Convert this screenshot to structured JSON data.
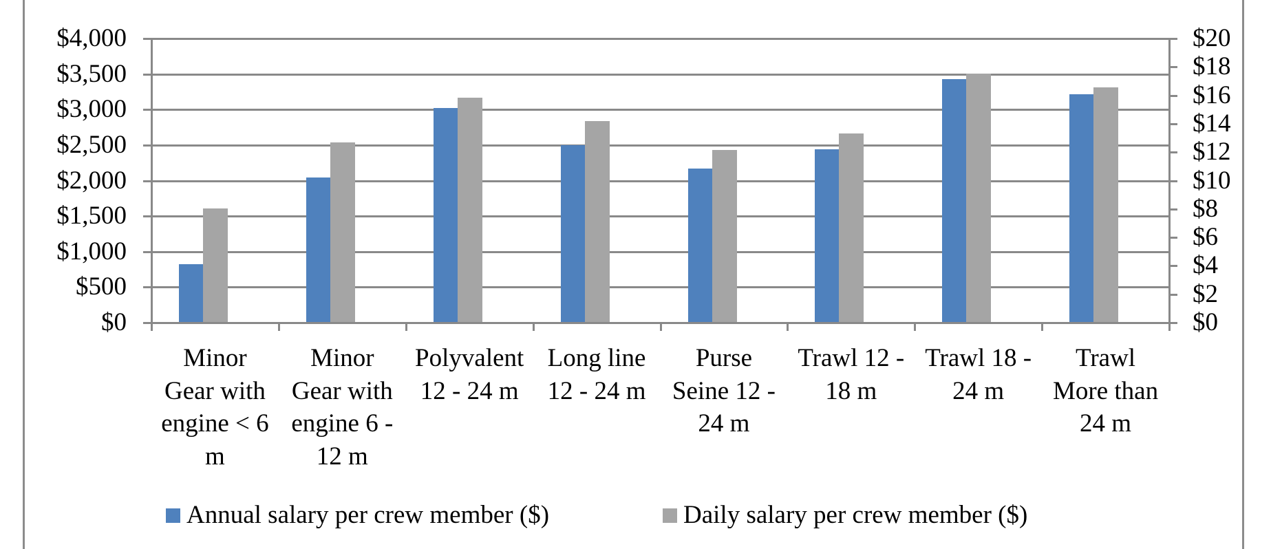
{
  "chart_data": {
    "type": "bar",
    "title": "",
    "xlabel": "",
    "ylabel": "",
    "y2label": "",
    "categories": [
      "Minor Gear with engine < 6 m",
      "Minor Gear with engine 6 - 12 m",
      "Polyvalent 12 - 24 m",
      "Long line 12 - 24 m",
      "Purse Seine 12 - 24 m",
      "Trawl 12 - 18 m",
      "Trawl 18 - 24 m",
      "Trawl More than 24 m"
    ],
    "category_lines": [
      "Minor\nGear with\nengine < 6\nm",
      "Minor\nGear with\nengine 6 -\n12 m",
      "Polyvalent\n12 - 24 m",
      "Long line\n12 - 24 m",
      "Purse\nSeine 12 -\n24 m",
      "Trawl 12 -\n18 m",
      "Trawl 18 -\n24 m",
      "Trawl\nMore than\n24 m"
    ],
    "series": [
      {
        "name": "Annual salary per crew member ($)",
        "axis": "left",
        "color": "#4f81bd",
        "values": [
          820,
          2040,
          3020,
          2500,
          2170,
          2440,
          3430,
          3220
        ]
      },
      {
        "name": "Daily salary per crew member ($)",
        "axis": "right",
        "color": "#a5a5a5",
        "values": [
          8.05,
          12.7,
          15.85,
          14.2,
          12.15,
          13.3,
          17.55,
          16.55
        ]
      }
    ],
    "ylim": [
      0,
      4000
    ],
    "y2lim": [
      0,
      20
    ],
    "yticks": [
      "$0",
      "$500",
      "$1,000",
      "$1,500",
      "$2,000",
      "$2,500",
      "$3,000",
      "$3,500",
      "$4,000"
    ],
    "y2ticks": [
      "$0",
      "$2",
      "$4",
      "$6",
      "$8",
      "$10",
      "$12",
      "$14",
      "$16",
      "$18",
      "$20"
    ],
    "grid": true,
    "legend_position": "bottom"
  },
  "legend": {
    "items": [
      {
        "label": "Annual salary per crew member ($)",
        "color": "#4f81bd"
      },
      {
        "label": "Daily salary per crew member ($)",
        "color": "#a5a5a5"
      }
    ]
  },
  "style": {
    "gridline_color": "#898989",
    "frame_color": "#8c8c8c"
  }
}
